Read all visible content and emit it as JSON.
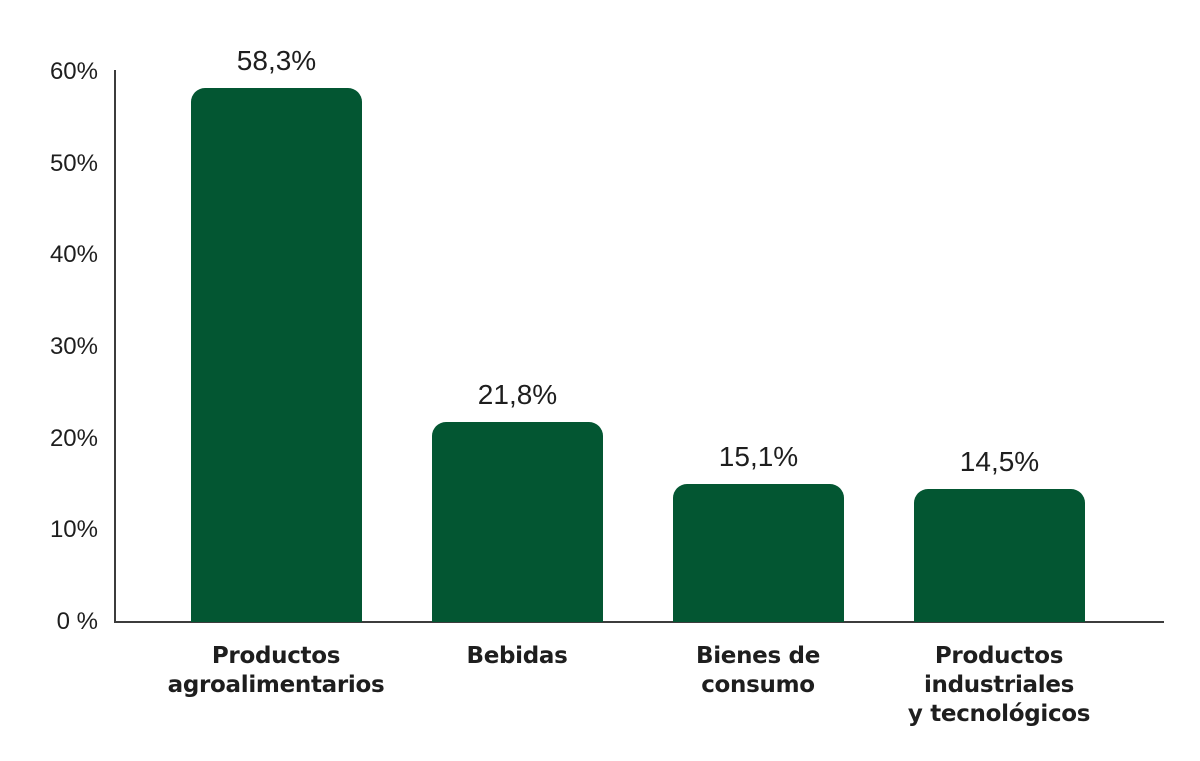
{
  "chart_data": {
    "type": "bar",
    "title": "",
    "xlabel": "",
    "ylabel": "",
    "categories": [
      "Productos agroalimentarios",
      "Bebidas",
      "Bienes de consumo",
      "Productos industriales y tecnológicos"
    ],
    "category_lines": [
      [
        "Productos",
        "agroalimentarios"
      ],
      [
        "Bebidas"
      ],
      [
        "Bienes de",
        "consumo"
      ],
      [
        "Productos",
        "industriales",
        "y tecnológicos"
      ]
    ],
    "values": [
      58.3,
      21.8,
      15.1,
      14.5
    ],
    "value_labels": [
      "58,3%",
      "21,8%",
      "15,1%",
      "14,5%"
    ],
    "ylim": [
      0,
      60
    ],
    "yticks": [
      0,
      10,
      20,
      30,
      40,
      50,
      60
    ],
    "ytick_labels": [
      "0 %",
      "10%",
      "20%",
      "30%",
      "40%",
      "50%",
      "60%"
    ],
    "grid": false,
    "legend": null,
    "bar_color": "#035632"
  }
}
